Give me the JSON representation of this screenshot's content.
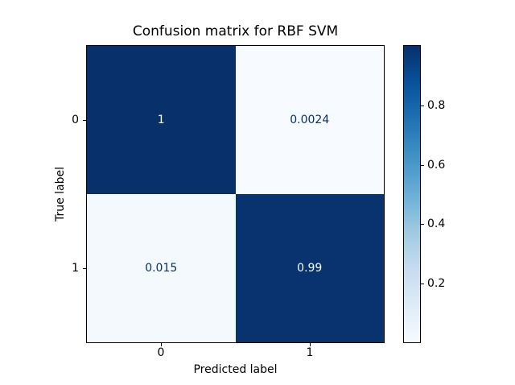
{
  "title": "Confusion matrix for RBF SVM",
  "chart_data": {
    "type": "heatmap",
    "title": "Confusion matrix for RBF SVM",
    "xlabel": "Predicted label",
    "ylabel": "True label",
    "x_tick_labels": [
      "0",
      "1"
    ],
    "y_tick_labels": [
      "0",
      "1"
    ],
    "matrix": [
      [
        1,
        0.0024
      ],
      [
        0.015,
        0.99
      ]
    ],
    "cells": [
      {
        "row": 0,
        "col": 0,
        "label": "1",
        "value": 1.0,
        "bg": "#08306b",
        "fg": "#f7fbff"
      },
      {
        "row": 0,
        "col": 1,
        "label": "0.0024",
        "value": 0.0024,
        "bg": "#f7fbff",
        "fg": "#08306b"
      },
      {
        "row": 1,
        "col": 0,
        "label": "0.015",
        "value": 0.015,
        "bg": "#f4f9fe",
        "fg": "#08306b"
      },
      {
        "row": 1,
        "col": 1,
        "label": "0.99",
        "value": 0.99,
        "bg": "#08336f",
        "fg": "#f7fbff"
      }
    ],
    "colormap": {
      "name": "Blues",
      "stops": [
        "#f7fbff",
        "#deebf7",
        "#c6dbef",
        "#9ecae1",
        "#6baed6",
        "#4292c6",
        "#2171b5",
        "#08519c",
        "#08306b"
      ]
    },
    "value_range": [
      0.0024,
      1.0
    ],
    "grid": false,
    "colorbar": {
      "position": "right",
      "orientation": "vertical",
      "tick_labels": {
        "v08": "0.8",
        "v06": "0.6",
        "v04": "0.4",
        "v02": "0.2"
      }
    }
  },
  "colors": {
    "background": "#ffffff",
    "text": "#000000",
    "spine": "#000000",
    "cmap_max": "#08306b",
    "cmap_min": "#f7fbff"
  }
}
